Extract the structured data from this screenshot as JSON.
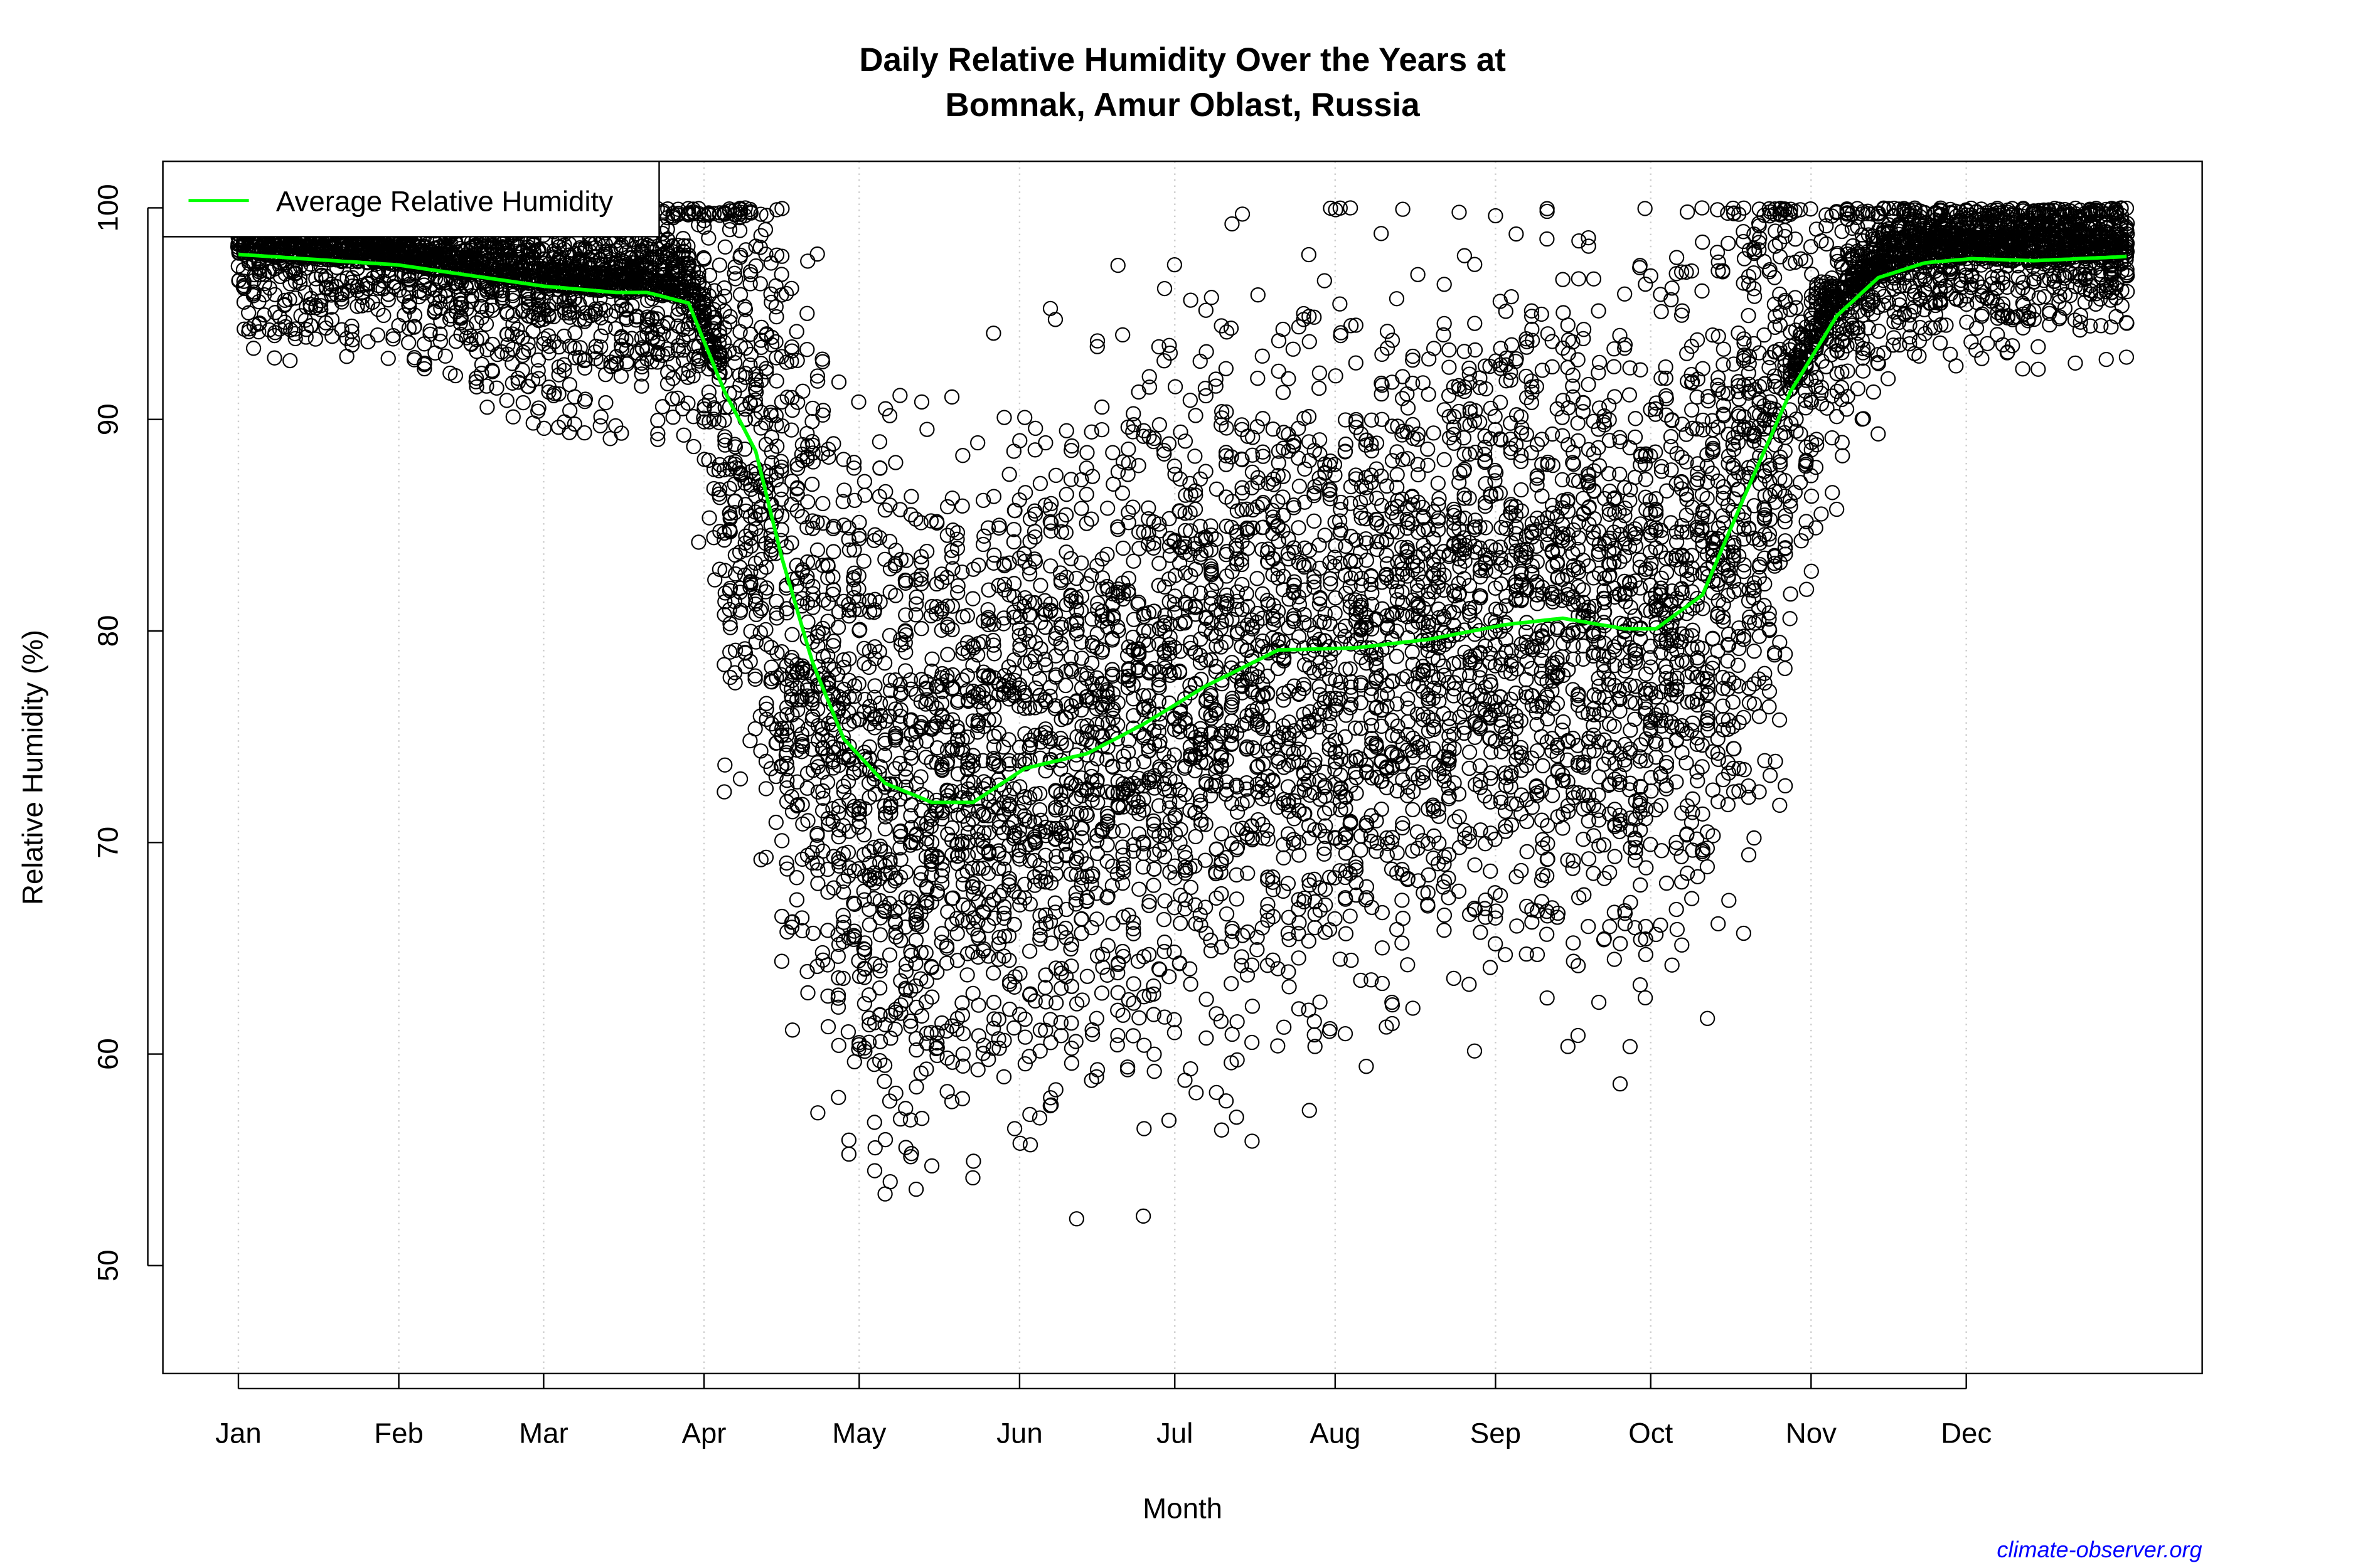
{
  "chart_data": {
    "type": "scatter",
    "title": "Daily Relative Humidity Over the Years at",
    "subtitle": "Bomnak, Amur Oblast, Russia",
    "xlabel": "Month",
    "ylabel": "Relative Humidity  (%)",
    "xlim": [
      -13.6,
      380.6
    ],
    "ylim": [
      44.9,
      102.2
    ],
    "grid": "vertical dotted at month starts",
    "x_ticks": [
      {
        "day": 1,
        "label": "Jan"
      },
      {
        "day": 32,
        "label": "Feb"
      },
      {
        "day": 60,
        "label": "Mar"
      },
      {
        "day": 91,
        "label": "Apr"
      },
      {
        "day": 121,
        "label": "May"
      },
      {
        "day": 152,
        "label": "Jun"
      },
      {
        "day": 182,
        "label": "Jul"
      },
      {
        "day": 213,
        "label": "Aug"
      },
      {
        "day": 244,
        "label": "Sep"
      },
      {
        "day": 274,
        "label": "Oct"
      },
      {
        "day": 305,
        "label": "Nov"
      },
      {
        "day": 335,
        "label": "Dec"
      }
    ],
    "y_ticks": [
      50,
      60,
      70,
      80,
      90,
      100
    ],
    "legend": {
      "placement": "top-left",
      "entries": [
        {
          "label": "Average Relative Humidity",
          "color": "#00ff00"
        }
      ]
    },
    "series": [
      {
        "name": "Average Relative Humidity",
        "type": "line",
        "color": "#00ff00",
        "x": [
          1,
          32,
          60,
          74,
          80,
          88,
          95,
          101,
          106,
          112,
          118,
          126,
          135,
          143,
          153,
          165,
          176,
          188,
          202,
          217,
          231,
          246,
          257,
          269,
          275,
          284,
          292,
          301,
          310,
          318,
          327,
          336,
          348,
          366
        ],
        "y": [
          97.8,
          97.3,
          96.3,
          96.0,
          96.0,
          95.5,
          91.3,
          88.5,
          83.5,
          78.5,
          74.9,
          72.8,
          71.9,
          71.9,
          73.5,
          74.2,
          75.6,
          77.4,
          79.1,
          79.2,
          79.6,
          80.3,
          80.6,
          80.1,
          80.1,
          81.7,
          86.3,
          91.3,
          94.9,
          96.7,
          97.4,
          97.6,
          97.5,
          97.7
        ]
      },
      {
        "name": "",
        "type": "scatter",
        "marker": "open circle",
        "color": "#000000",
        "description_range": "daily observations, ~47 to 100 %"
      }
    ],
    "colors": {
      "points": "#000000",
      "average": "#00ff00",
      "credit": "#0000ff"
    }
  },
  "credit": "climate-observer.org"
}
